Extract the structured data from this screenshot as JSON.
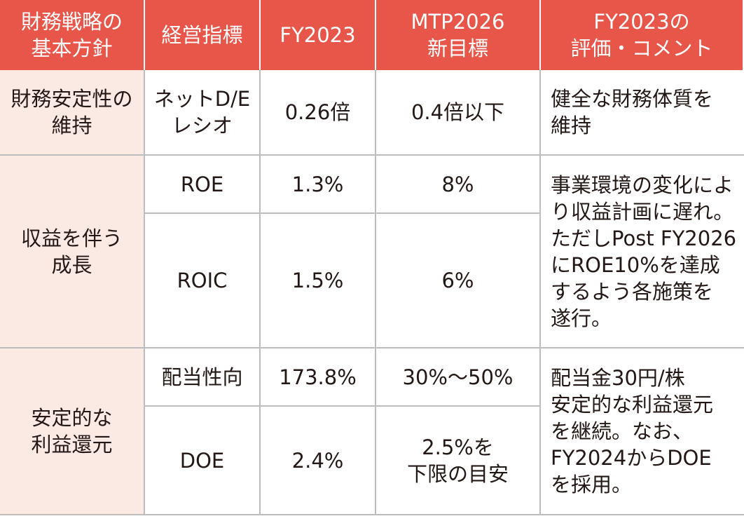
{
  "table": {
    "header": [
      [
        "財務戦略の",
        "基本方針"
      ],
      [
        "経営指標"
      ],
      [
        "FY2023"
      ],
      [
        "MTP2026",
        "新目標"
      ],
      [
        "FY2023の",
        "評価・コメント"
      ]
    ],
    "groups": [
      {
        "policy": [
          "財務安定性の",
          "維持"
        ],
        "metrics": [
          {
            "name": [
              "ネットD/E",
              "レシオ"
            ],
            "fy2023": [
              "0.26倍"
            ],
            "target": [
              "0.4倍以下"
            ]
          }
        ],
        "comment": [
          "健全な財務体質を",
          "維持"
        ]
      },
      {
        "policy": [
          "収益を伴う",
          "成長"
        ],
        "metrics": [
          {
            "name": [
              "ROE"
            ],
            "fy2023": [
              "1.3%"
            ],
            "target": [
              "8%"
            ]
          },
          {
            "name": [
              "ROIC"
            ],
            "fy2023": [
              "1.5%"
            ],
            "target": [
              "6%"
            ]
          }
        ],
        "comment": [
          "事業環境の変化によ",
          "り収益計画に遅れ。",
          "ただしPost FY2026",
          "にROE10%を達成",
          "するよう各施策を",
          "遂行。"
        ]
      },
      {
        "policy": [
          "安定的な",
          "利益還元"
        ],
        "metrics": [
          {
            "name": [
              "配当性向"
            ],
            "fy2023": [
              "173.8%"
            ],
            "target": [
              "30%～50%"
            ]
          },
          {
            "name": [
              "DOE"
            ],
            "fy2023": [
              "2.4%"
            ],
            "target": [
              "2.5%を",
              "下限の目安"
            ]
          }
        ],
        "comment": [
          "配当金30円/株",
          "安定的な利益還元",
          "を継続。なお、",
          "FY2024からDOE",
          "を採用。"
        ]
      }
    ]
  }
}
